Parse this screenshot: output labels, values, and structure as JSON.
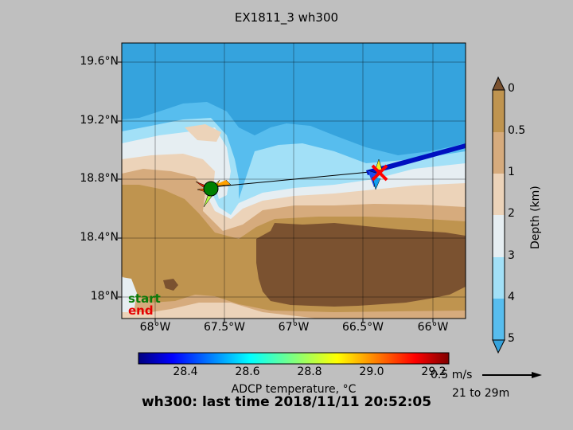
{
  "title": "EX1811_3 wh300",
  "map": {
    "lat_labels": [
      "19.6°N",
      "19.2°N",
      "18.8°N",
      "18.4°N",
      "18°N"
    ],
    "lon_labels": [
      "68°W",
      "67.5°W",
      "67°W",
      "66.5°W",
      "66°W"
    ],
    "start_label": "start",
    "end_label": "end",
    "colors": {
      "deep": "#35a3dd",
      "mid_deep": "#57bdee",
      "mid": "#a2e0f7",
      "shallow_light": "#e6eef2",
      "sand_light": "#ecd3b9",
      "sand": "#d6ab7d",
      "tan": "#bf944f",
      "brown": "#7b5230",
      "track": "#0000cc",
      "start_marker": "#008000",
      "end_marker": "#ff0000"
    }
  },
  "depth_colorbar": {
    "title": "Depth (km)",
    "ticks": [
      "0",
      "0.5",
      "1",
      "2",
      "3",
      "4",
      "5"
    ]
  },
  "temp_colorbar": {
    "label": "ADCP temperature, °C",
    "ticks": [
      "28.4",
      "28.6",
      "28.8",
      "29.0",
      "29.2"
    ]
  },
  "vector_scale": {
    "label": "0.5 m/s",
    "depth_range": "21 to 29m"
  },
  "footer": "wh300: last time 2018/11/11 20:52:05"
}
